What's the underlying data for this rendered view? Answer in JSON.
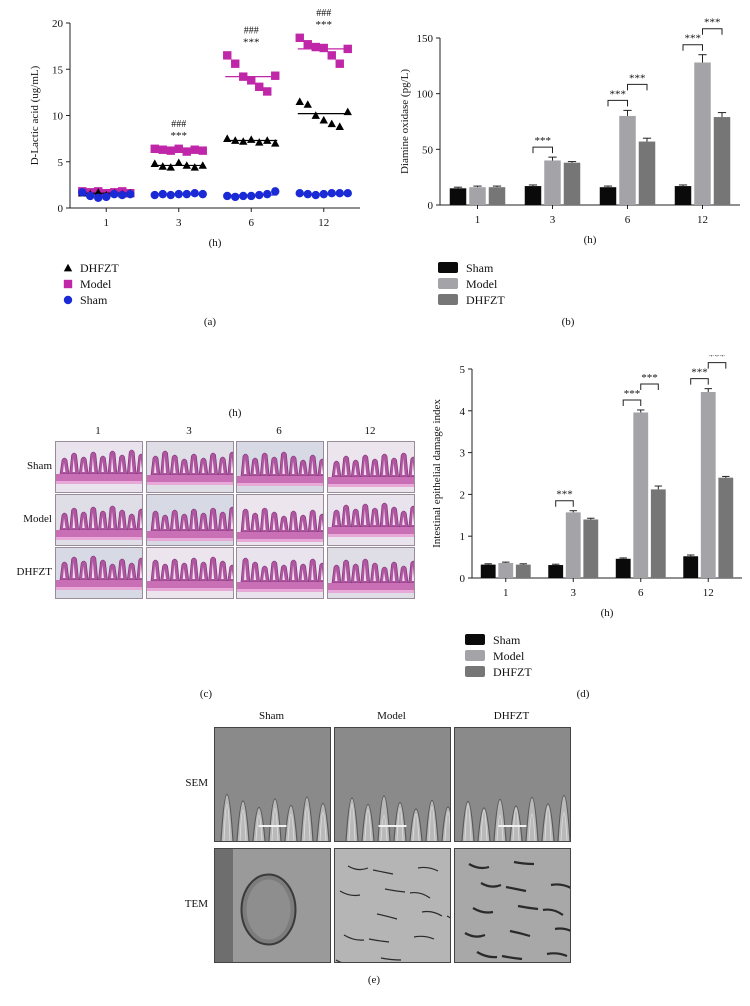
{
  "panel_letters": {
    "a": "(a)",
    "b": "(b)",
    "c": "(c)",
    "d": "(d)",
    "e": "(e)"
  },
  "chart_data": [
    {
      "id": "a",
      "type": "scatter",
      "ylabel": "D-Lactic acid (ug/mL)",
      "xlabel": "(h)",
      "categories": [
        "1",
        "3",
        "6",
        "12"
      ],
      "ylim": [
        0,
        20
      ],
      "yticks": [
        0,
        5,
        10,
        15,
        20
      ],
      "legend_position": "bottom-left",
      "series": [
        {
          "name": "DHFZT",
          "marker": "triangle",
          "color": "#000000",
          "points": [
            [
              1.6,
              1.5,
              1.7,
              1.4,
              1.6,
              1.5,
              1.6
            ],
            [
              4.8,
              4.5,
              4.4,
              4.9,
              4.6,
              4.4,
              4.6
            ],
            [
              7.5,
              7.3,
              7.2,
              7.4,
              7.1,
              7.3,
              7.0
            ],
            [
              11.5,
              11.2,
              10.0,
              9.5,
              9.1,
              8.8,
              10.4
            ]
          ],
          "means": [
            1.6,
            4.6,
            7.3,
            10.2
          ]
        },
        {
          "name": "Model",
          "marker": "square",
          "color": "#c026a8",
          "points": [
            [
              1.8,
              1.7,
              1.8,
              1.6,
              1.7,
              1.8,
              1.6
            ],
            [
              6.4,
              6.3,
              6.2,
              6.4,
              6.1,
              6.3,
              6.2
            ],
            [
              16.5,
              15.6,
              14.2,
              13.8,
              13.1,
              12.6,
              14.3
            ],
            [
              18.4,
              17.7,
              17.4,
              17.3,
              16.5,
              15.6,
              17.2
            ]
          ],
          "means": [
            1.7,
            6.3,
            14.2,
            17.2
          ]
        },
        {
          "name": "Sham",
          "marker": "circle",
          "color": "#1a2bd6",
          "points": [
            [
              1.7,
              1.3,
              1.1,
              1.2,
              1.5,
              1.4,
              1.5
            ],
            [
              1.4,
              1.5,
              1.4,
              1.5,
              1.5,
              1.6,
              1.5
            ],
            [
              1.3,
              1.2,
              1.3,
              1.3,
              1.4,
              1.5,
              1.8
            ],
            [
              1.6,
              1.5,
              1.4,
              1.5,
              1.6,
              1.6,
              1.6
            ]
          ],
          "means": [
            1.4,
            1.5,
            1.4,
            1.5
          ]
        }
      ],
      "annotations": [
        {
          "x": "3",
          "lines": [
            "###",
            "***"
          ]
        },
        {
          "x": "6",
          "lines": [
            "###",
            "***"
          ]
        },
        {
          "x": "12",
          "lines": [
            "###",
            "***"
          ]
        }
      ]
    },
    {
      "id": "b",
      "type": "bar",
      "ylabel": "Diamine oxidase (pg/L)",
      "xlabel": "(h)",
      "categories": [
        "1",
        "3",
        "6",
        "12"
      ],
      "ylim": [
        0,
        150
      ],
      "yticks": [
        0,
        50,
        100,
        150
      ],
      "legend_position": "bottom-left",
      "series": [
        {
          "name": "Sham",
          "color": "#0a0a0a",
          "values": [
            15,
            17,
            16,
            17
          ],
          "errors": [
            1,
            1,
            1,
            1
          ]
        },
        {
          "name": "Model",
          "color": "#a4a4a8",
          "values": [
            16,
            40,
            80,
            128
          ],
          "errors": [
            1,
            3,
            5,
            7
          ]
        },
        {
          "name": "DHFZT",
          "color": "#767676",
          "values": [
            16,
            38,
            57,
            79
          ],
          "errors": [
            1,
            1,
            3,
            4
          ]
        }
      ],
      "significance": [
        {
          "category": "3",
          "pair": [
            0,
            1
          ],
          "label": "***"
        },
        {
          "category": "6",
          "pair": [
            0,
            1
          ],
          "label": "***"
        },
        {
          "category": "6",
          "pair": [
            1,
            2
          ],
          "label": "***"
        },
        {
          "category": "12",
          "pair": [
            0,
            1
          ],
          "label": "***"
        },
        {
          "category": "12",
          "pair": [
            1,
            2
          ],
          "label": "***"
        }
      ]
    },
    {
      "id": "d",
      "type": "bar",
      "ylabel": "Intestinal epithelial damage index",
      "xlabel": "(h)",
      "categories": [
        "1",
        "3",
        "6",
        "12"
      ],
      "ylim": [
        0,
        5
      ],
      "yticks": [
        0,
        1,
        2,
        3,
        4,
        5
      ],
      "legend_position": "bottom-left",
      "series": [
        {
          "name": "Sham",
          "color": "#0a0a0a",
          "values": [
            0.32,
            0.31,
            0.46,
            0.52
          ],
          "errors": [
            0.02,
            0.02,
            0.02,
            0.03
          ]
        },
        {
          "name": "Model",
          "color": "#a4a4a8",
          "values": [
            0.36,
            1.57,
            3.96,
            4.45
          ],
          "errors": [
            0.02,
            0.04,
            0.06,
            0.08
          ]
        },
        {
          "name": "DHFZT",
          "color": "#767676",
          "values": [
            0.32,
            1.4,
            2.12,
            2.4
          ],
          "errors": [
            0.02,
            0.03,
            0.08,
            0.03
          ]
        }
      ],
      "significance": [
        {
          "category": "3",
          "pair": [
            0,
            1
          ],
          "label": "***"
        },
        {
          "category": "6",
          "pair": [
            0,
            1
          ],
          "label": "***"
        },
        {
          "category": "6",
          "pair": [
            1,
            2
          ],
          "label": "***"
        },
        {
          "category": "12",
          "pair": [
            0,
            1
          ],
          "label": "***"
        },
        {
          "category": "12",
          "pair": [
            1,
            2
          ],
          "label": "***"
        }
      ]
    }
  ],
  "histology": {
    "xlabel": "(h)",
    "columns": [
      "1",
      "3",
      "6",
      "12"
    ],
    "rows": [
      "Sham",
      "Model",
      "DHFZT"
    ]
  },
  "electron_microscopy": {
    "columns": [
      "Sham",
      "Model",
      "DHFZT"
    ],
    "rows": [
      "SEM",
      "TEM"
    ]
  }
}
